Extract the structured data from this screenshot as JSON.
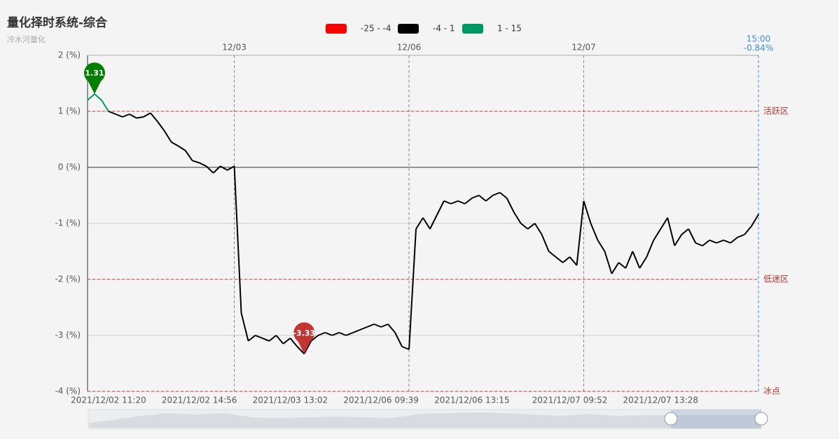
{
  "chart_data": {
    "type": "line",
    "title": "量化择时系统-综合",
    "subtitle": "冷水河量化",
    "pieces": [
      {
        "min": -25,
        "max": -4,
        "label": "-25 - -4",
        "color": "#ff0000"
      },
      {
        "min": -4,
        "max": 1,
        "label": "-4 - 1",
        "color": "#000000"
      },
      {
        "min": 1,
        "max": 15,
        "label": "1 - 15",
        "color": "#009966"
      }
    ],
    "categories": [
      null,
      null,
      null,
      "2021/12/02 11:20",
      null,
      null,
      null,
      null,
      null,
      null,
      null,
      null,
      null,
      null,
      null,
      null,
      "2021/12/02 14:56",
      null,
      null,
      null,
      null,
      null,
      null,
      null,
      null,
      null,
      null,
      null,
      null,
      "2021/12/03 13:02",
      null,
      null,
      null,
      null,
      null,
      null,
      null,
      null,
      null,
      null,
      null,
      null,
      "2021/12/06 09:39",
      null,
      null,
      null,
      null,
      null,
      null,
      null,
      null,
      null,
      null,
      null,
      null,
      "2021/12/06 13:15",
      null,
      null,
      null,
      null,
      null,
      null,
      null,
      null,
      null,
      null,
      null,
      null,
      null,
      "2021/12/07 09:52",
      null,
      null,
      null,
      null,
      null,
      null,
      null,
      null,
      null,
      null,
      null,
      null,
      "2021/12/07 13:28",
      null,
      null,
      null,
      null,
      null,
      null,
      null,
      null,
      null,
      null,
      null,
      null,
      null,
      null
    ],
    "top_categories": [
      null,
      null,
      null,
      null,
      null,
      null,
      null,
      null,
      null,
      null,
      null,
      null,
      null,
      null,
      null,
      null,
      null,
      null,
      null,
      null,
      null,
      "12/03",
      null,
      null,
      null,
      null,
      null,
      null,
      null,
      null,
      null,
      null,
      null,
      null,
      null,
      null,
      null,
      null,
      null,
      null,
      null,
      null,
      null,
      null,
      null,
      null,
      "12/06",
      null,
      null,
      null,
      null,
      null,
      null,
      null,
      null,
      null,
      null,
      null,
      null,
      null,
      null,
      null,
      null,
      null,
      null,
      null,
      null,
      null,
      null,
      null,
      null,
      "12/07",
      null,
      null,
      null,
      null,
      null,
      null,
      null,
      null,
      null,
      null,
      null,
      null,
      null,
      null,
      null,
      null,
      null,
      null,
      null,
      null,
      null,
      null,
      null,
      null,
      null
    ],
    "series": [
      {
        "values": [
          1.2,
          1.31,
          1.2,
          1.0,
          0.95,
          0.9,
          0.95,
          0.88,
          0.9,
          0.97,
          0.82,
          0.65,
          0.45,
          0.38,
          0.3,
          0.12,
          0.08,
          0.02,
          -0.1,
          0.02,
          -0.05,
          0.02,
          -2.6,
          -3.1,
          -3.0,
          -3.05,
          -3.1,
          -3.0,
          -3.15,
          -3.05,
          -3.2,
          -3.33,
          -3.1,
          -3.0,
          -2.95,
          -3.0,
          -2.95,
          -3.0,
          -2.95,
          -2.9,
          -2.85,
          -2.8,
          -2.85,
          -2.8,
          -2.95,
          -3.2,
          -3.25,
          -1.1,
          -0.9,
          -1.1,
          -0.85,
          -0.6,
          -0.65,
          -0.6,
          -0.65,
          -0.55,
          -0.5,
          -0.6,
          -0.5,
          -0.45,
          -0.55,
          -0.8,
          -1.0,
          -1.1,
          -1.0,
          -1.2,
          -1.5,
          -1.6,
          -1.7,
          -1.6,
          -1.75,
          -0.6,
          -1.0,
          -1.3,
          -1.5,
          -1.9,
          -1.7,
          -1.8,
          -1.5,
          -1.8,
          -1.6,
          -1.3,
          -1.1,
          -0.9,
          -1.4,
          -1.2,
          -1.1,
          -1.35,
          -1.4,
          -1.3,
          -1.35,
          -1.3,
          -1.35,
          -1.25,
          -1.2,
          -1.05,
          -0.84
        ]
      }
    ],
    "mark_points": [
      {
        "index": 1,
        "color": "#008000"
      },
      {
        "index": 31,
        "color": "#c23531"
      }
    ],
    "ylim": [
      -4,
      2
    ],
    "yticks": [
      {
        "value": -4,
        "label": "-4 (%)"
      },
      {
        "value": -3,
        "label": "-3 (%)"
      },
      {
        "value": -2,
        "label": "-2 (%)"
      },
      {
        "value": -1,
        "label": "-1 (%)"
      },
      {
        "value": 0,
        "label": "0 (%)"
      },
      {
        "value": 1,
        "label": "1 (%)"
      },
      {
        "value": 2,
        "label": "2 (%)"
      }
    ],
    "grid": true,
    "mark_lines": [
      {
        "value": 1,
        "label": "活跃区"
      },
      {
        "value": -2,
        "label": "低迷区"
      },
      {
        "value": -4,
        "label": "冰点"
      }
    ],
    "end_label": {
      "time": "15:00",
      "value": -0.84,
      "label": "-0.84%"
    }
  }
}
